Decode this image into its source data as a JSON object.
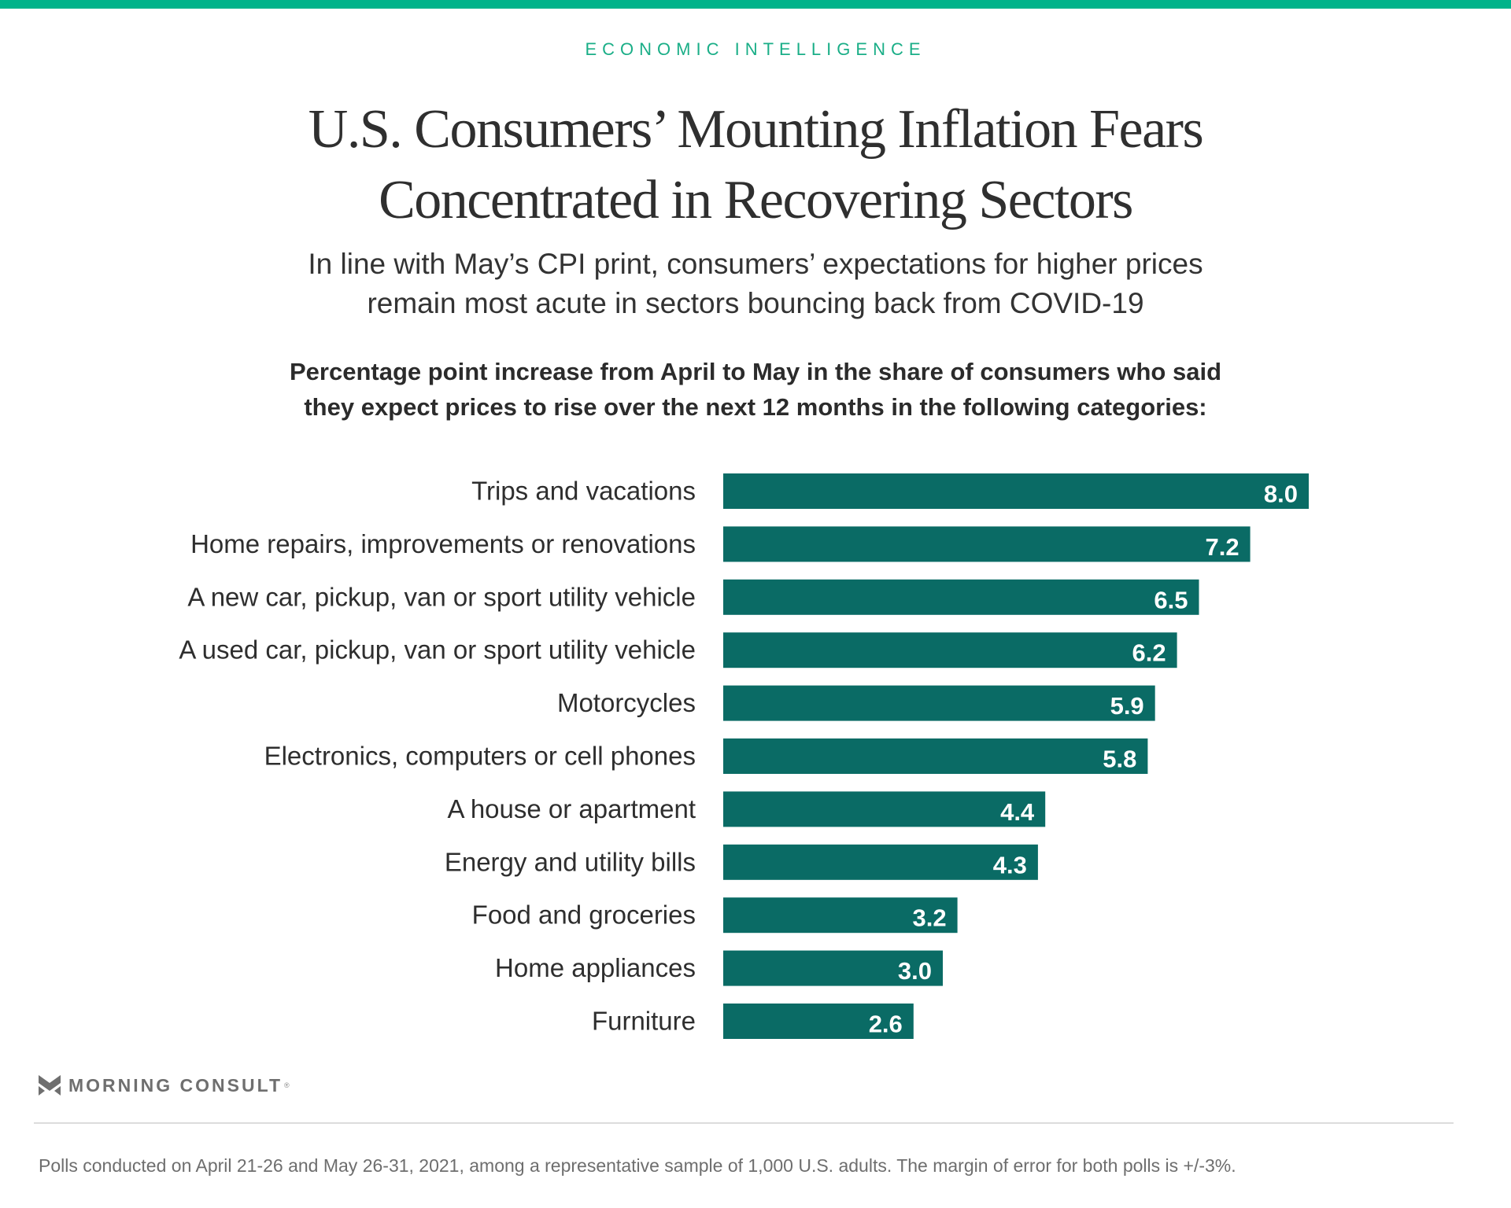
{
  "header": {
    "kicker": "ECONOMIC INTELLIGENCE",
    "title_lines": [
      "U.S. Consumers’ Mounting Inflation Fears",
      "Concentrated in Recovering Sectors"
    ],
    "subtitle_lines": [
      "In line with May’s CPI print, consumers’ expectations for higher prices",
      "remain most acute in sectors bouncing back from COVID-19"
    ]
  },
  "colors": {
    "accent": "#00B38A",
    "bar": "#0A6B65",
    "bar_value_text": "#FFFFFF"
  },
  "chart_data": {
    "type": "bar",
    "orientation": "horizontal",
    "title": "Percentage point increase from April to May in the share of consumers who said they expect prices to rise over the next 12 months in the following categories:",
    "title_lines": [
      "Percentage point increase from April to May in the share of consumers who said",
      "they expect prices to rise over the next 12 months in the following categories:"
    ],
    "xlabel": "",
    "ylabel": "",
    "xlim": [
      0,
      8.0
    ],
    "grid": false,
    "legend": "none",
    "categories": [
      "Trips and vacations",
      "Home repairs, improvements or renovations",
      "A new car, pickup, van or sport utility vehicle",
      "A used car, pickup, van or sport utility vehicle",
      "Motorcycles",
      "Electronics, computers or cell phones",
      "A house or apartment",
      "Energy and utility bills",
      "Food and groceries",
      "Home appliances",
      "Furniture"
    ],
    "values": [
      8.0,
      7.2,
      6.5,
      6.2,
      5.9,
      5.8,
      4.4,
      4.3,
      3.2,
      3.0,
      2.6
    ],
    "value_labels": [
      "8.0",
      "7.2",
      "6.5",
      "6.2",
      "5.9",
      "5.8",
      "4.4",
      "4.3",
      "3.2",
      "3.0",
      "2.6"
    ]
  },
  "footer": {
    "logo_text": "MORNING CONSULT",
    "logo_mark": "®",
    "logo_icon": "morning-consult-chevron-icon",
    "note": "Polls conducted on April 21-26 and May 26-31, 2021, among a representative sample of 1,000 U.S. adults. The margin of error for both polls is +/-3%."
  }
}
